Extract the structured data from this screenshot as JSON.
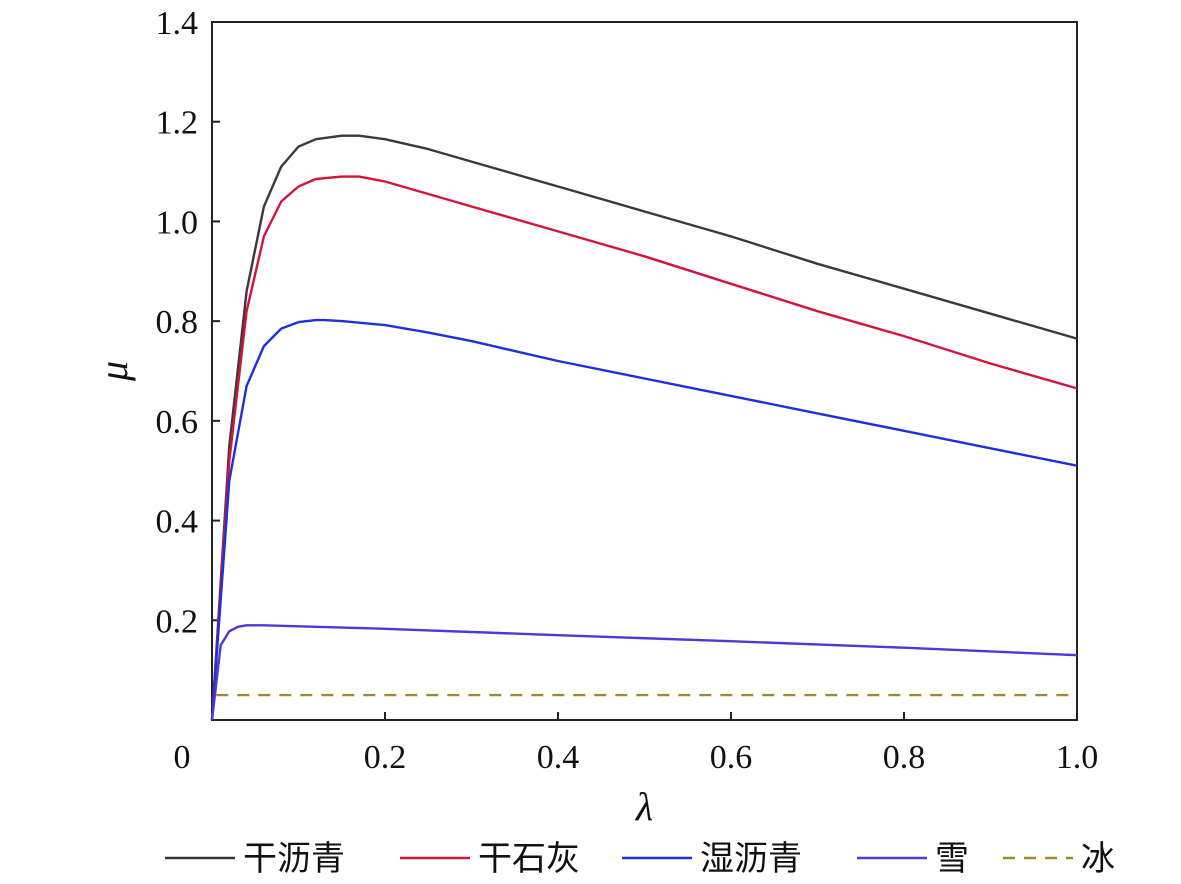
{
  "chart_data": {
    "type": "line",
    "title": "",
    "xlabel": "λ",
    "ylabel": "μ",
    "xlim": [
      0,
      1.0
    ],
    "ylim": [
      0,
      1.4
    ],
    "x_ticks": [
      0,
      0.2,
      0.4,
      0.6,
      0.8,
      1.0
    ],
    "x_tick_labels": [
      "0",
      "0.2",
      "0.4",
      "0.6",
      "0.8",
      "1.0"
    ],
    "y_ticks": [
      0.2,
      0.4,
      0.6,
      0.8,
      1.0,
      1.2,
      1.4
    ],
    "y_tick_labels": [
      "0.2",
      "0.4",
      "0.6",
      "0.8",
      "1.0",
      "1.2",
      "1.4"
    ],
    "grid": false,
    "legend_position": "bottom",
    "series": [
      {
        "name": "干沥青",
        "color": "#3a3a3a",
        "dash": "solid",
        "x": [
          0,
          0.02,
          0.04,
          0.06,
          0.08,
          0.1,
          0.12,
          0.15,
          0.17,
          0.2,
          0.25,
          0.3,
          0.4,
          0.5,
          0.6,
          0.7,
          0.8,
          0.9,
          1.0
        ],
        "y": [
          0,
          0.55,
          0.86,
          1.03,
          1.11,
          1.15,
          1.165,
          1.172,
          1.172,
          1.165,
          1.145,
          1.12,
          1.07,
          1.02,
          0.97,
          0.915,
          0.865,
          0.815,
          0.765
        ]
      },
      {
        "name": "干石灰",
        "color": "#d4143a",
        "dash": "solid",
        "x": [
          0,
          0.02,
          0.04,
          0.06,
          0.08,
          0.1,
          0.12,
          0.15,
          0.17,
          0.2,
          0.25,
          0.3,
          0.4,
          0.5,
          0.6,
          0.7,
          0.8,
          0.9,
          1.0
        ],
        "y": [
          0,
          0.52,
          0.82,
          0.97,
          1.04,
          1.07,
          1.085,
          1.09,
          1.09,
          1.08,
          1.055,
          1.03,
          0.98,
          0.93,
          0.875,
          0.82,
          0.77,
          0.715,
          0.665
        ]
      },
      {
        "name": "湿沥青",
        "color": "#1f2fe0",
        "dash": "solid",
        "x": [
          0,
          0.02,
          0.04,
          0.06,
          0.08,
          0.1,
          0.12,
          0.13,
          0.15,
          0.2,
          0.25,
          0.3,
          0.4,
          0.5,
          0.6,
          0.7,
          0.8,
          0.9,
          1.0
        ],
        "y": [
          0,
          0.48,
          0.67,
          0.75,
          0.785,
          0.798,
          0.802,
          0.802,
          0.8,
          0.792,
          0.777,
          0.76,
          0.72,
          0.685,
          0.65,
          0.615,
          0.58,
          0.545,
          0.51
        ]
      },
      {
        "name": "雪",
        "color": "#4a3ad8",
        "dash": "solid",
        "x": [
          0,
          0.01,
          0.02,
          0.03,
          0.04,
          0.05,
          0.06,
          0.08,
          0.1,
          0.2,
          0.4,
          0.6,
          0.8,
          1.0
        ],
        "y": [
          0,
          0.15,
          0.178,
          0.187,
          0.19,
          0.19,
          0.19,
          0.189,
          0.188,
          0.183,
          0.17,
          0.158,
          0.145,
          0.13
        ]
      },
      {
        "name": "冰",
        "color": "#a08a28",
        "dash": "dashed",
        "x": [
          0.005,
          1.0
        ],
        "y": [
          0.05,
          0.05
        ]
      }
    ]
  }
}
